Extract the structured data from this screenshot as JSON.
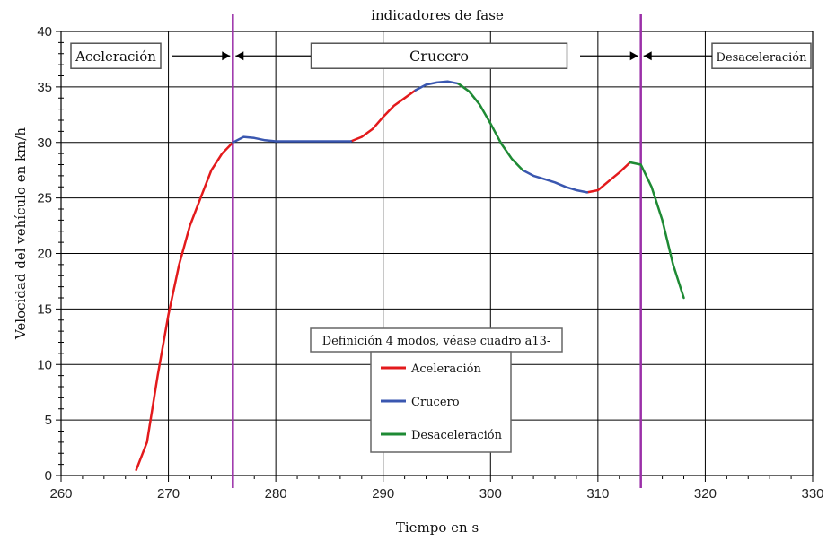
{
  "chart_data": {
    "type": "line",
    "title": "indicadores de fase",
    "xlabel": "Tiempo en s",
    "ylabel": "Velocidad del vehículo en km/h",
    "xlim": [
      260,
      330
    ],
    "ylim": [
      0,
      40
    ],
    "xticks": [
      260,
      270,
      280,
      290,
      300,
      310,
      320,
      330
    ],
    "yticks": [
      0,
      5,
      10,
      15,
      20,
      25,
      30,
      35,
      40
    ],
    "grid": true,
    "phase_markers": {
      "color": "#9b30a8",
      "x": [
        276,
        314
      ]
    },
    "phase_labels": [
      {
        "label": "Aceleración",
        "x_start": 260,
        "x_end": 276
      },
      {
        "label": "Crucero",
        "x_start": 276,
        "x_end": 314
      },
      {
        "label": "Desaceleración",
        "x_start": 314,
        "x_end": 330
      }
    ],
    "legend": {
      "title": "Definición 4 modos, véase cuadro a13-",
      "placement": "center-bottom"
    },
    "series": [
      {
        "name": "Aceleración",
        "color": "#e31a1c",
        "segments": [
          [
            [
              267.0,
              0.5
            ],
            [
              268.0,
              3.0
            ],
            [
              269.0,
              9.0
            ],
            [
              270.0,
              14.5
            ],
            [
              271.0,
              19.0
            ],
            [
              272.0,
              22.5
            ],
            [
              273.0,
              25.0
            ],
            [
              274.0,
              27.5
            ],
            [
              275.0,
              29.0
            ],
            [
              276.0,
              30.0
            ]
          ],
          [
            [
              287.0,
              30.1
            ],
            [
              288.0,
              30.5
            ],
            [
              289.0,
              31.2
            ],
            [
              290.0,
              32.3
            ],
            [
              291.0,
              33.3
            ],
            [
              292.0,
              34.0
            ],
            [
              293.0,
              34.7
            ]
          ],
          [
            [
              309.0,
              25.5
            ],
            [
              310.0,
              25.7
            ],
            [
              311.0,
              26.5
            ],
            [
              312.0,
              27.3
            ],
            [
              313.0,
              28.2
            ]
          ]
        ]
      },
      {
        "name": "Crucero",
        "color": "#3a57b0",
        "segments": [
          [
            [
              276.0,
              30.0
            ],
            [
              277.0,
              30.5
            ],
            [
              278.0,
              30.4
            ],
            [
              279.0,
              30.2
            ],
            [
              280.0,
              30.1
            ],
            [
              283.0,
              30.1
            ],
            [
              287.0,
              30.1
            ]
          ],
          [
            [
              293.0,
              34.7
            ],
            [
              294.0,
              35.2
            ],
            [
              295.0,
              35.4
            ],
            [
              296.0,
              35.5
            ],
            [
              297.0,
              35.3
            ]
          ],
          [
            [
              303.0,
              27.5
            ],
            [
              304.0,
              27.0
            ],
            [
              305.0,
              26.7
            ],
            [
              306.0,
              26.4
            ],
            [
              307.0,
              26.0
            ],
            [
              308.0,
              25.7
            ],
            [
              309.0,
              25.5
            ]
          ]
        ]
      },
      {
        "name": "Desaceleración",
        "color": "#1e8a34",
        "segments": [
          [
            [
              297.0,
              35.3
            ],
            [
              298.0,
              34.6
            ],
            [
              299.0,
              33.4
            ],
            [
              300.0,
              31.7
            ],
            [
              301.0,
              29.9
            ],
            [
              302.0,
              28.5
            ],
            [
              303.0,
              27.5
            ]
          ],
          [
            [
              313.0,
              28.2
            ],
            [
              314.0,
              28.0
            ],
            [
              315.0,
              26.0
            ],
            [
              316.0,
              23.0
            ],
            [
              317.0,
              19.0
            ],
            [
              318.0,
              16.0
            ]
          ]
        ]
      }
    ]
  }
}
